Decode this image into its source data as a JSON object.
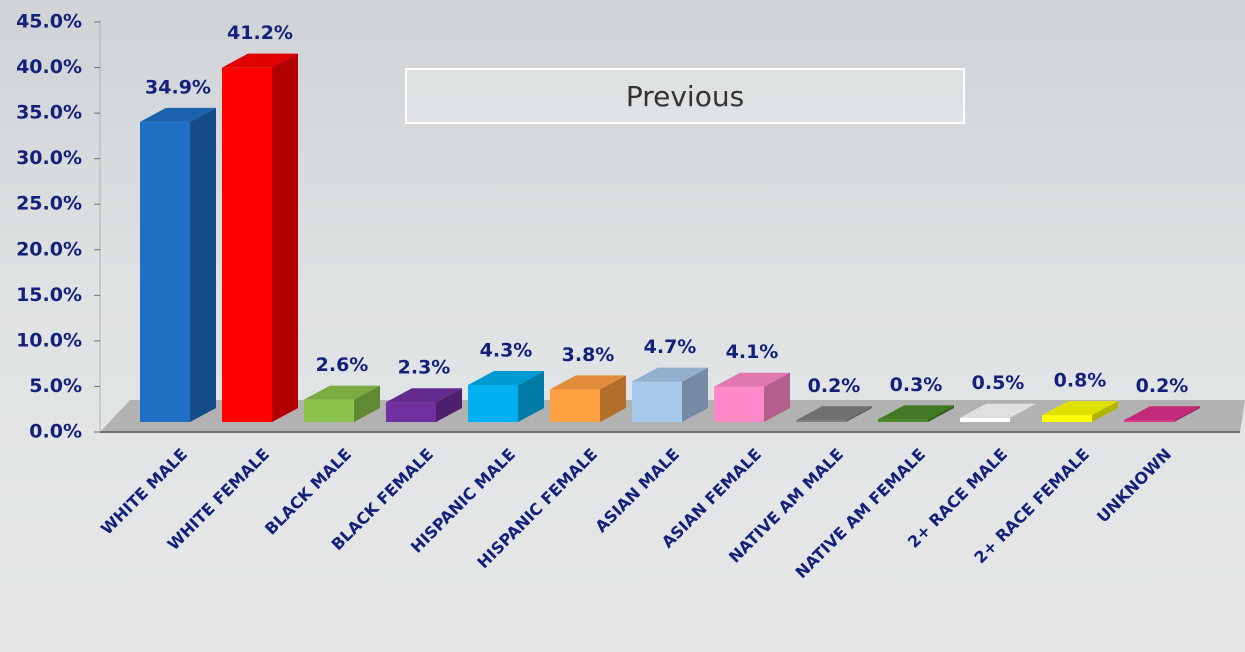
{
  "chart_data": {
    "type": "bar",
    "categories": [
      "WHITE MALE",
      "WHITE FEMALE",
      "BLACK MALE",
      "BLACK FEMALE",
      "HISPANIC MALE",
      "HISPANIC FEMALE",
      "ASIAN MALE",
      "ASIAN FEMALE",
      "NATIVE AM MALE",
      "NATIVE AM FEMALE",
      "2+ RACE MALE",
      "2+ RACE FEMALE",
      "UNKNOWN"
    ],
    "values": [
      34.9,
      41.2,
      2.6,
      2.3,
      4.3,
      3.8,
      4.7,
      4.1,
      0.2,
      0.3,
      0.5,
      0.8,
      0.2
    ],
    "value_labels": [
      "34.9%",
      "41.2%",
      "2.6%",
      "2.3%",
      "4.3%",
      "3.8%",
      "4.7%",
      "4.1%",
      "0.2%",
      "0.3%",
      "0.5%",
      "0.8%",
      "0.2%"
    ],
    "colors": [
      "#1f6fc5",
      "#ff0000",
      "#8bc34a",
      "#7030a0",
      "#00b0f0",
      "#ffa040",
      "#a8c8ec",
      "#ff88c8",
      "#808080",
      "#4a8a2a",
      "#ffffff",
      "#ffff00",
      "#e0308a"
    ],
    "ylim": [
      0,
      45
    ],
    "yticks": [
      {
        "value": 0,
        "label": "0.0%"
      },
      {
        "value": 5,
        "label": "5.0%"
      },
      {
        "value": 10,
        "label": "10.0%"
      },
      {
        "value": 15,
        "label": "15.0%"
      },
      {
        "value": 20,
        "label": "20.0%"
      },
      {
        "value": 25,
        "label": "25.0%"
      },
      {
        "value": 30,
        "label": "30.0%"
      },
      {
        "value": 35,
        "label": "35.0%"
      },
      {
        "value": 40,
        "label": "40.0%"
      },
      {
        "value": 45,
        "label": "45.0%"
      }
    ]
  },
  "button": {
    "label": "Previous"
  }
}
